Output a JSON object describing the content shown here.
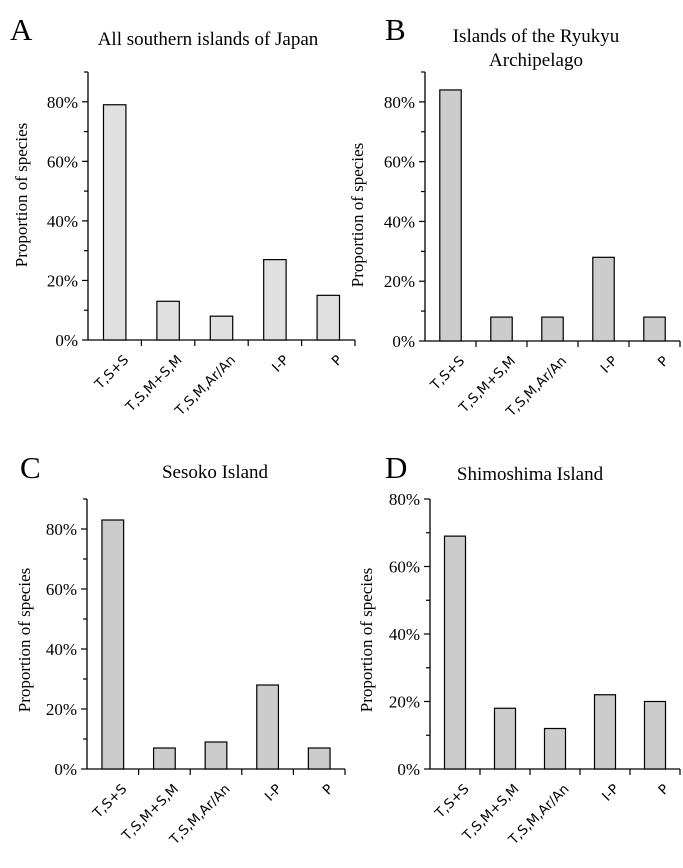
{
  "chart_data": [
    {
      "type": "bar",
      "panel": "A",
      "title": "All southern islands of Japan",
      "xlabel": "",
      "ylabel": "Proportion of species",
      "categories": [
        "T,S+S",
        "T,S,M+S,M",
        "T,S,M,Ar/An",
        "I-P",
        "P"
      ],
      "values": [
        79,
        13,
        8,
        27,
        15
      ],
      "ylim": [
        0,
        90
      ],
      "y_ticks": [
        "0%",
        "20%",
        "40%",
        "60%",
        "80%"
      ],
      "bar_color": "#e0e0e0",
      "grid": false
    },
    {
      "type": "bar",
      "panel": "B",
      "title": "Islands of the Ryukyu Archipelago",
      "title_lines": [
        "Islands of the Ryukyu",
        "Archipelago"
      ],
      "xlabel": "",
      "ylabel": "Proportion of species",
      "categories": [
        "T,S+S",
        "T,S,M+S,M",
        "T,S,M,Ar/An",
        "I-P",
        "P"
      ],
      "values": [
        84,
        8,
        8,
        28,
        8
      ],
      "ylim": [
        0,
        90
      ],
      "y_ticks": [
        "0%",
        "20%",
        "40%",
        "60%",
        "80%"
      ],
      "bar_color": "#cccccc",
      "grid": false
    },
    {
      "type": "bar",
      "panel": "C",
      "title": "Sesoko Island",
      "xlabel": "",
      "ylabel": "Proportion of species",
      "categories": [
        "T,S+S",
        "T,S,M+S,M",
        "T,S,M,Ar/An",
        "I-P",
        "P"
      ],
      "values": [
        83,
        7,
        9,
        28,
        7
      ],
      "ylim": [
        0,
        90
      ],
      "y_ticks": [
        "0%",
        "20%",
        "40%",
        "60%",
        "80%"
      ],
      "bar_color": "#cccccc",
      "grid": false
    },
    {
      "type": "bar",
      "panel": "D",
      "title": "Shimoshima Island",
      "xlabel": "",
      "ylabel": "Proportion of species",
      "categories": [
        "T,S+S",
        "T,S,M+S,M",
        "T,S,M,Ar/An",
        "I-P",
        "P"
      ],
      "values": [
        69,
        18,
        12,
        22,
        20
      ],
      "ylim": [
        0,
        80
      ],
      "y_ticks": [
        "0%",
        "20%",
        "40%",
        "60%",
        "80%"
      ],
      "bar_color": "#cccccc",
      "grid": false
    }
  ]
}
